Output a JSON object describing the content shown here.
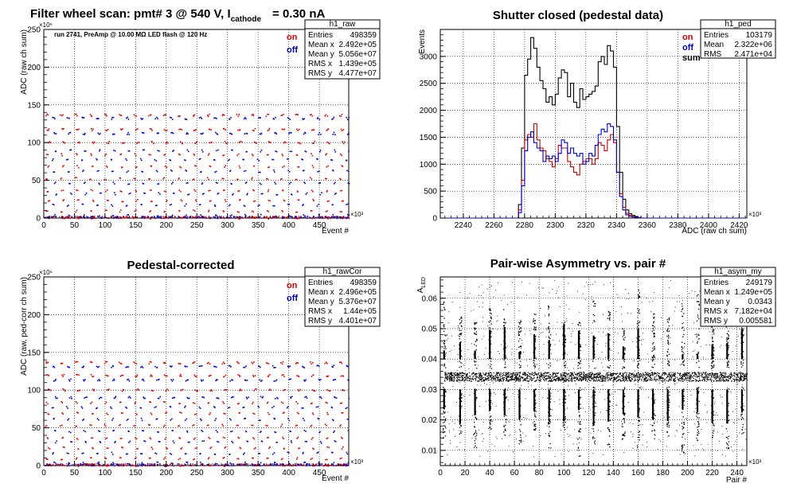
{
  "chart_data": [
    {
      "id": "raw",
      "type": "scatter",
      "title_parts": [
        "Filter wheel scan: pmt#   3 @   540 V, I",
        "cathode",
        "= 0.30 nA"
      ],
      "annotation": "run 2741, PreAmp @ 10.00 MΩ LED flash @  120 Hz",
      "xlabel": "Event #",
      "ylabel": "ADC (raw ch sum)",
      "x_exponent": "×10³",
      "y_exponent": "×10⁶",
      "xlim": [
        0,
        498
      ],
      "ylim": [
        0,
        250
      ],
      "xticks": [
        0,
        50,
        100,
        150,
        200,
        250,
        300,
        350,
        400,
        450
      ],
      "yticks": [
        0,
        50,
        100,
        150,
        200,
        250
      ],
      "legend": [
        {
          "label": "on",
          "color": "#e00000"
        },
        {
          "label": "off",
          "color": "#0000cc"
        }
      ],
      "stats": {
        "name": "h1_raw",
        "rows": [
          [
            "Entries",
            "498359"
          ],
          [
            "Mean x",
            "2.492e+05"
          ],
          [
            "Mean y",
            "5.056e+07"
          ],
          [
            "RMS x",
            "1.439e+05"
          ],
          [
            "RMS y",
            "4.477e+07"
          ]
        ]
      },
      "levels": [
        137,
        133,
        118,
        113,
        101,
        90,
        85,
        78,
        69,
        63,
        53,
        47,
        37,
        33,
        24,
        18,
        10,
        4,
        1
      ],
      "period": 24
    },
    {
      "id": "ped",
      "type": "line",
      "title": "Shutter closed (pedestal data)",
      "xlabel": "ADC (raw ch sum)",
      "ylabel": "Events",
      "x_exponent": "×10³",
      "xlim": [
        2225,
        2425
      ],
      "ylim": [
        0,
        3500
      ],
      "xticks": [
        2240,
        2260,
        2280,
        2300,
        2320,
        2340,
        2360,
        2380,
        2400,
        2420
      ],
      "yticks": [
        0,
        500,
        1000,
        1500,
        2000,
        2500,
        3000
      ],
      "legend": [
        {
          "label": "on",
          "color": "#cc0000"
        },
        {
          "label": "off",
          "color": "#0000cc"
        },
        {
          "label": "sum",
          "color": "#000000"
        }
      ],
      "stats": {
        "name": "h1_ped",
        "rows": [
          [
            "Entries",
            "103179"
          ],
          [
            "Mean",
            "2.322e+06"
          ],
          [
            "RMS",
            "2.471e+04"
          ]
        ]
      },
      "bin_start": 2276,
      "bin_width": 2,
      "series": [
        {
          "name": "sum",
          "color": "#000000",
          "values": [
            250,
            1300,
            2650,
            2950,
            3350,
            3150,
            2800,
            2550,
            2400,
            2150,
            2250,
            2100,
            2300,
            2600,
            2750,
            2700,
            2250,
            2500,
            2150,
            2050,
            2400,
            2200,
            2250,
            2300,
            2350,
            2450,
            2900,
            3000,
            2850,
            3200,
            3100,
            2800,
            1700,
            850,
            350,
            150,
            80,
            50,
            30,
            10
          ]
        },
        {
          "name": "on",
          "color": "#cc0000",
          "values": [
            150,
            700,
            1450,
            1550,
            1500,
            1750,
            1450,
            1300,
            1250,
            1100,
            1050,
            950,
            1100,
            1350,
            1300,
            1300,
            1050,
            950,
            850,
            800,
            1000,
            1050,
            1100,
            1100,
            1000,
            1100,
            1400,
            1350,
            1250,
            1450,
            1550,
            1400,
            850,
            450,
            200,
            90,
            50,
            30,
            15,
            5
          ]
        },
        {
          "name": "off",
          "color": "#0000cc",
          "values": [
            100,
            600,
            1250,
            1500,
            1600,
            1400,
            1300,
            1250,
            1050,
            1150,
            1100,
            1150,
            1050,
            1200,
            1450,
            1400,
            1200,
            1300,
            1200,
            1150,
            1200,
            1000,
            1050,
            1200,
            1150,
            1350,
            1550,
            1650,
            1600,
            1750,
            1700,
            1450,
            850,
            400,
            150,
            60,
            30,
            20,
            15,
            5
          ]
        }
      ]
    },
    {
      "id": "rawcor",
      "type": "scatter",
      "title": "Pedestal-corrected",
      "xlabel": "Event #",
      "ylabel": "ADC (raw, ped-corr ch sum)",
      "x_exponent": "×10³",
      "y_exponent": "×10⁶",
      "xlim": [
        0,
        498
      ],
      "ylim": [
        0,
        250
      ],
      "xticks": [
        0,
        50,
        100,
        150,
        200,
        250,
        300,
        350,
        400,
        450
      ],
      "yticks": [
        0,
        50,
        100,
        150,
        200,
        250
      ],
      "legend": [
        {
          "label": "on",
          "color": "#e00000"
        },
        {
          "label": "off",
          "color": "#0000cc"
        }
      ],
      "stats": {
        "name": "h1_rawCor",
        "rows": [
          [
            "Entries",
            "498359"
          ],
          [
            "Mean x",
            "2.496e+05"
          ],
          [
            "Mean y",
            "5.376e+07"
          ],
          [
            "RMS x",
            "1.44e+05"
          ],
          [
            "RMS y",
            "4.401e+07"
          ]
        ]
      },
      "levels": [
        137,
        132,
        120,
        114,
        101,
        91,
        84,
        78,
        70,
        62,
        54,
        46,
        37,
        32,
        24,
        17,
        10,
        4,
        1
      ],
      "period": 24
    },
    {
      "id": "asym",
      "type": "scatter",
      "title": "Pair-wise Asymmetry vs. pair #",
      "xlabel": "Pair #",
      "ylabel_parts": [
        "A",
        "LED"
      ],
      "x_exponent": "×10³",
      "xlim": [
        0,
        248
      ],
      "ylim": [
        0.005,
        0.067
      ],
      "xticks": [
        0,
        20,
        40,
        60,
        80,
        100,
        120,
        140,
        160,
        180,
        200,
        220,
        240
      ],
      "yticks": [
        0.01,
        0.02,
        0.03,
        0.04,
        0.05,
        0.06
      ],
      "stats": {
        "name": "h1_asym_my",
        "rows": [
          [
            "Entries",
            "249179"
          ],
          [
            "Mean x",
            "1.249e+05"
          ],
          [
            "Mean y",
            "0.0343"
          ],
          [
            "RMS x",
            "7.182e+04"
          ],
          [
            "RMS y",
            "0.005581"
          ]
        ]
      },
      "band_center": 0.0343,
      "stripe_x": [
        3,
        16,
        28,
        40,
        52,
        64,
        76,
        88,
        100,
        112,
        124,
        136,
        148,
        160,
        172,
        184,
        196,
        208,
        220,
        232,
        244
      ]
    }
  ]
}
